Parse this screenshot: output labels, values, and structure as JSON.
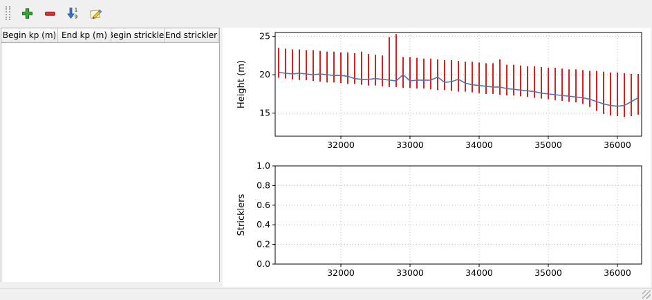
{
  "toolbar": {
    "buttons": [
      {
        "name": "add-row",
        "icon": "plus-icon"
      },
      {
        "name": "remove-row",
        "icon": "minus-icon"
      },
      {
        "name": "sort-rows",
        "icon": "sort-ascending-icon"
      },
      {
        "name": "edit",
        "icon": "edit-pencil-icon"
      }
    ],
    "sort_icon": {
      "top_digit": "1",
      "bottom_digit": "9"
    }
  },
  "table": {
    "columns": [
      "Begin kp (m)",
      "End kp (m)",
      "Begin strickler",
      "End strickler"
    ],
    "rows": []
  },
  "chart_data": [
    {
      "type": "bar",
      "title": "",
      "xlabel": "",
      "ylabel": "Height (m)",
      "xlim": [
        31050,
        36350
      ],
      "ylim": [
        12.0,
        25.5
      ],
      "xticks": [
        32000,
        33000,
        34000,
        35000,
        36000
      ],
      "xtick_labels": [
        "32000",
        "33000",
        "34000",
        "35000",
        "36000"
      ],
      "yticks": [
        15,
        20,
        25
      ],
      "ytick_labels": [
        "15",
        "20",
        "25"
      ],
      "grid": true,
      "series": [
        {
          "name": "cross-section-range",
          "type": "range-bar",
          "color": "#dd1c1c",
          "x": [
            31100,
            31200,
            31300,
            31400,
            31500,
            31600,
            31700,
            31800,
            31900,
            32000,
            32100,
            32200,
            32300,
            32400,
            32500,
            32600,
            32700,
            32800,
            32900,
            33000,
            33100,
            33200,
            33300,
            33400,
            33500,
            33600,
            33700,
            33800,
            33900,
            34000,
            34100,
            34200,
            34300,
            34400,
            34500,
            34600,
            34700,
            34800,
            34900,
            35000,
            35100,
            35200,
            35300,
            35400,
            35500,
            35600,
            35700,
            35800,
            35900,
            36000,
            36100,
            36200,
            36300
          ],
          "top": [
            23.5,
            23.4,
            23.3,
            23.3,
            23.2,
            23.2,
            23.1,
            23.0,
            23.0,
            22.9,
            22.9,
            22.8,
            23.0,
            22.7,
            22.6,
            22.5,
            24.9,
            25.3,
            22.3,
            22.3,
            22.2,
            22.1,
            22.1,
            22.0,
            21.9,
            21.9,
            21.8,
            21.7,
            21.7,
            21.6,
            21.5,
            21.5,
            22.0,
            21.3,
            21.3,
            21.2,
            21.1,
            21.1,
            21.0,
            20.9,
            20.9,
            20.8,
            20.7,
            20.7,
            20.6,
            20.5,
            20.5,
            20.4,
            20.3,
            20.3,
            20.2,
            20.1,
            20.1
          ],
          "bottom": [
            19.6,
            19.5,
            19.4,
            19.3,
            19.3,
            19.2,
            19.1,
            19.0,
            19.0,
            18.9,
            18.8,
            18.8,
            18.7,
            18.6,
            18.6,
            18.5,
            18.4,
            18.4,
            18.3,
            18.3,
            18.2,
            18.2,
            18.1,
            18.0,
            18.0,
            17.9,
            17.8,
            17.8,
            17.7,
            17.6,
            17.5,
            17.5,
            17.4,
            17.3,
            17.3,
            17.2,
            17.1,
            17.0,
            16.9,
            16.8,
            16.7,
            16.6,
            16.5,
            16.4,
            16.2,
            15.8,
            15.3,
            14.9,
            14.7,
            14.6,
            14.5,
            14.6,
            14.8
          ]
        },
        {
          "name": "mean-height-line",
          "type": "line",
          "color": "#4f74b3",
          "x": [
            31100,
            31200,
            31300,
            31400,
            31500,
            31600,
            31700,
            31800,
            31900,
            32000,
            32100,
            32200,
            32300,
            32400,
            32500,
            32600,
            32700,
            32800,
            32900,
            33000,
            33100,
            33200,
            33300,
            33400,
            33500,
            33600,
            33700,
            33800,
            33900,
            34000,
            34100,
            34200,
            34300,
            34400,
            34500,
            34600,
            34700,
            34800,
            34900,
            35000,
            35100,
            35200,
            35300,
            35400,
            35500,
            35600,
            35700,
            35800,
            35900,
            36000,
            36100,
            36200,
            36300
          ],
          "y": [
            20.3,
            20.2,
            20.1,
            20.2,
            20.1,
            20.0,
            20.1,
            20.0,
            19.9,
            19.9,
            19.8,
            19.5,
            19.4,
            19.4,
            19.5,
            19.4,
            19.3,
            19.2,
            20.0,
            19.2,
            19.3,
            19.3,
            19.3,
            19.7,
            19.0,
            19.1,
            19.4,
            18.9,
            18.7,
            18.6,
            18.5,
            18.4,
            18.4,
            18.2,
            18.1,
            18.0,
            17.9,
            17.8,
            17.6,
            17.5,
            17.4,
            17.3,
            17.2,
            17.1,
            17.0,
            16.8,
            16.5,
            16.2,
            16.0,
            15.9,
            16.0,
            16.5,
            17.0
          ]
        }
      ]
    },
    {
      "type": "bar",
      "title": "",
      "xlabel": "",
      "ylabel": "Stricklers",
      "xlim": [
        31050,
        36350
      ],
      "ylim": [
        0.0,
        1.0
      ],
      "xticks": [
        32000,
        33000,
        34000,
        35000,
        36000
      ],
      "xtick_labels": [
        "32000",
        "33000",
        "34000",
        "35000",
        "36000"
      ],
      "yticks": [
        0.0,
        0.2,
        0.4,
        0.6,
        0.8,
        1.0
      ],
      "ytick_labels": [
        "0.0",
        "0.2",
        "0.4",
        "0.6",
        "0.8",
        "1.0"
      ],
      "grid": true,
      "series": []
    }
  ]
}
